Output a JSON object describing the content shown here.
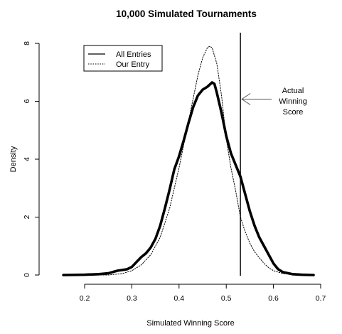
{
  "chart_data": {
    "type": "line",
    "title": "10,000 Simulated Tournaments",
    "xlabel": "Simulated Winning Score",
    "ylabel": "Density",
    "xlim": [
      0.15,
      0.7
    ],
    "ylim": [
      0,
      8.3
    ],
    "xticks": [
      0.2,
      0.3,
      0.4,
      0.5,
      0.6,
      0.7
    ],
    "xtick_labels": [
      "0.2",
      "0.3",
      "0.4",
      "0.5",
      "0.6",
      "0.7"
    ],
    "yticks": [
      0,
      2,
      4,
      6,
      8
    ],
    "ytick_labels": [
      "0",
      "2",
      "4",
      "6",
      "8"
    ],
    "grid": false,
    "legend_position": "top-left",
    "series": [
      {
        "name": "All Entries",
        "style": "solid-thick",
        "x": [
          0.155,
          0.2,
          0.23,
          0.25,
          0.27,
          0.29,
          0.3,
          0.31,
          0.32,
          0.33,
          0.34,
          0.35,
          0.36,
          0.37,
          0.38,
          0.39,
          0.4,
          0.41,
          0.42,
          0.43,
          0.44,
          0.45,
          0.46,
          0.47,
          0.475,
          0.48,
          0.49,
          0.5,
          0.51,
          0.52,
          0.53,
          0.54,
          0.55,
          0.56,
          0.57,
          0.58,
          0.59,
          0.6,
          0.61,
          0.62,
          0.64,
          0.66,
          0.685
        ],
        "y": [
          0.0,
          0.01,
          0.03,
          0.06,
          0.15,
          0.2,
          0.28,
          0.45,
          0.62,
          0.75,
          0.95,
          1.25,
          1.7,
          2.3,
          2.95,
          3.65,
          4.1,
          4.65,
          5.25,
          5.8,
          6.2,
          6.4,
          6.5,
          6.65,
          6.6,
          6.3,
          5.6,
          4.8,
          4.2,
          3.8,
          3.4,
          2.8,
          2.2,
          1.7,
          1.3,
          1.0,
          0.7,
          0.4,
          0.2,
          0.1,
          0.03,
          0.01,
          0.0
        ]
      },
      {
        "name": "Our Entry",
        "style": "dotted",
        "x": [
          0.155,
          0.25,
          0.28,
          0.3,
          0.32,
          0.34,
          0.36,
          0.38,
          0.4,
          0.42,
          0.44,
          0.45,
          0.46,
          0.465,
          0.47,
          0.48,
          0.49,
          0.5,
          0.51,
          0.52,
          0.53,
          0.54,
          0.55,
          0.56,
          0.57,
          0.58,
          0.59,
          0.6,
          0.62,
          0.64,
          0.66,
          0.685
        ],
        "y": [
          0.0,
          0.0,
          0.05,
          0.15,
          0.35,
          0.7,
          1.3,
          2.3,
          3.7,
          5.3,
          6.9,
          7.5,
          7.85,
          7.9,
          7.85,
          7.3,
          6.2,
          4.7,
          3.7,
          2.9,
          2.0,
          1.5,
          1.1,
          0.8,
          0.6,
          0.4,
          0.25,
          0.15,
          0.05,
          0.02,
          0.0,
          0.0
        ]
      }
    ],
    "vline": {
      "x": 0.53
    },
    "annotation": {
      "lines": [
        "Actual",
        "Winning",
        "Score"
      ],
      "arrow_y": 6.0
    },
    "legend_entries": [
      "All Entries",
      "Our Entry"
    ]
  }
}
